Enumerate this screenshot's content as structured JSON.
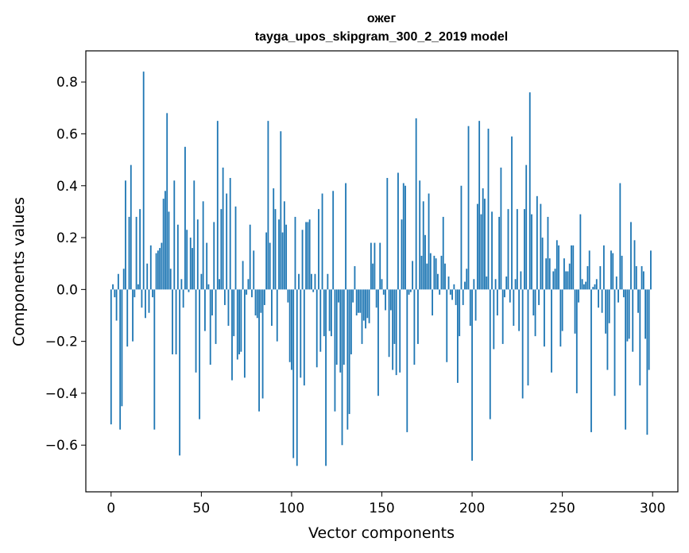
{
  "chart_data": {
    "type": "bar",
    "title": "ожег",
    "subtitle": "tayga_upos_skipgram_300_2_2019 model",
    "xlabel": "Vector components",
    "ylabel": "Components values",
    "xlim": [
      -14,
      314
    ],
    "ylim": [
      -0.78,
      0.92
    ],
    "xticks": [
      0,
      50,
      100,
      150,
      200,
      250,
      300
    ],
    "xtick_labels": [
      "0",
      "50",
      "100",
      "150",
      "200",
      "250",
      "300"
    ],
    "yticks": [
      -0.6,
      -0.4,
      -0.2,
      0.0,
      0.2,
      0.4,
      0.6,
      0.8
    ],
    "ytick_labels": [
      "−0.6",
      "−0.4",
      "−0.2",
      "0.0",
      "0.2",
      "0.4",
      "0.6",
      "0.8"
    ],
    "bar_color": "#1f77b4",
    "grid": false,
    "x": "indices 0..299",
    "values": [
      -0.52,
      0.02,
      -0.03,
      -0.12,
      0.06,
      -0.54,
      -0.45,
      0.08,
      0.42,
      -0.22,
      0.28,
      0.48,
      -0.2,
      -0.03,
      0.28,
      0.02,
      0.31,
      -0.07,
      0.84,
      -0.11,
      0.1,
      -0.09,
      0.17,
      -0.03,
      -0.54,
      0.14,
      0.15,
      0.16,
      0.18,
      0.35,
      0.38,
      0.68,
      0.3,
      0.08,
      -0.25,
      0.42,
      -0.25,
      0.25,
      -0.64,
      0.04,
      -0.07,
      0.55,
      0.23,
      -0.01,
      0.2,
      0.16,
      0.42,
      -0.32,
      0.27,
      -0.5,
      0.06,
      0.34,
      -0.16,
      0.18,
      0.02,
      -0.29,
      -0.1,
      0.26,
      -0.21,
      0.65,
      0.04,
      0.31,
      0.47,
      -0.06,
      0.37,
      -0.14,
      0.43,
      -0.35,
      -0.18,
      0.32,
      -0.27,
      -0.25,
      -0.24,
      0.11,
      -0.34,
      -0.02,
      0.04,
      0.25,
      -0.03,
      0.15,
      -0.1,
      -0.11,
      -0.47,
      -0.09,
      -0.42,
      -0.06,
      0.22,
      0.65,
      0.18,
      -0.14,
      0.39,
      0.31,
      -0.2,
      0.27,
      0.61,
      0.22,
      0.34,
      0.25,
      -0.05,
      -0.28,
      -0.31,
      -0.65,
      0.28,
      -0.68,
      0.06,
      -0.34,
      0.23,
      -0.37,
      0.26,
      0.26,
      0.27,
      0.06,
      -0.01,
      0.06,
      -0.3,
      0.31,
      -0.24,
      0.37,
      -0.18,
      -0.68,
      0.06,
      -0.16,
      -0.18,
      0.38,
      -0.47,
      -0.29,
      -0.05,
      -0.32,
      -0.6,
      -0.29,
      0.41,
      -0.54,
      -0.48,
      -0.25,
      -0.05,
      0.09,
      -0.1,
      -0.09,
      -0.09,
      -0.21,
      -0.12,
      -0.15,
      -0.11,
      -0.13,
      0.18,
      0.1,
      0.18,
      -0.07,
      -0.41,
      0.18,
      0.04,
      -0.02,
      -0.08,
      0.43,
      -0.26,
      -0.08,
      -0.31,
      -0.21,
      -0.33,
      0.45,
      -0.32,
      0.27,
      0.41,
      0.4,
      -0.55,
      -0.02,
      -0.01,
      0.11,
      -0.29,
      0.66,
      -0.21,
      0.42,
      0.13,
      0.34,
      0.21,
      0.1,
      0.37,
      0.14,
      -0.1,
      0.13,
      0.12,
      0.06,
      -0.02,
      0.13,
      0.28,
      0.1,
      -0.28,
      0.05,
      -0.02,
      -0.04,
      0.02,
      -0.06,
      -0.36,
      -0.18,
      0.4,
      -0.06,
      0.03,
      0.08,
      0.63,
      -0.14,
      -0.66,
      0.04,
      -0.12,
      0.33,
      0.65,
      0.29,
      0.39,
      0.35,
      0.05,
      0.62,
      -0.5,
      0.3,
      -0.23,
      0.04,
      -0.1,
      0.28,
      0.47,
      -0.21,
      -0.03,
      0.05,
      0.31,
      -0.05,
      0.59,
      -0.14,
      0.04,
      0.31,
      -0.16,
      0.07,
      -0.42,
      0.31,
      0.48,
      -0.37,
      0.76,
      0.29,
      -0.1,
      -0.18,
      0.36,
      -0.06,
      0.33,
      0.2,
      -0.22,
      0.12,
      0.28,
      0.12,
      -0.32,
      0.07,
      0.08,
      0.19,
      0.17,
      -0.22,
      -0.16,
      0.12,
      0.07,
      0.07,
      0.1,
      0.17,
      0.17,
      -0.17,
      -0.4,
      -0.05,
      0.29,
      0.04,
      0.02,
      0.03,
      0.09,
      0.15,
      -0.55,
      0.01,
      0.02,
      0.04,
      -0.07,
      0.09,
      -0.09,
      0.17,
      -0.17,
      -0.31,
      -0.13,
      0.15,
      0.14,
      -0.41,
      0.05,
      -0.05,
      0.41,
      0.13,
      -0.03,
      -0.54,
      -0.2,
      -0.19,
      0.26,
      -0.24,
      0.19,
      0.09,
      -0.09,
      -0.37,
      0.09,
      0.07,
      -0.19,
      -0.56,
      -0.31,
      0.15
    ]
  }
}
